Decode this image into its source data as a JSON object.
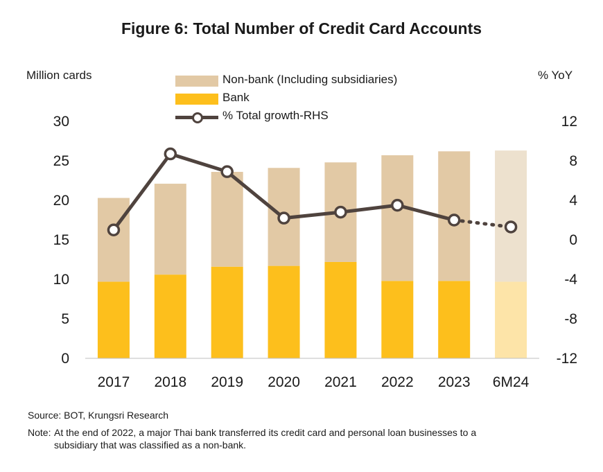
{
  "title": "Figure  6: Total Number of Credit Card Accounts",
  "left_axis_title": "Million cards",
  "right_axis_title": "% YoY",
  "source": "Source: BOT, Krungsri Research",
  "note": {
    "label": "Note:",
    "text": "At the end of 2022, a major Thai bank transferred its credit card and personal loan businesses to a subsidiary that was classified as a non-bank."
  },
  "colors": {
    "nonbank": "#E2C9A5",
    "bank": "#FDBF1C",
    "nonbank_faded": "#EDE1CE",
    "bank_faded": "#FDE4A8",
    "line": "#4F433E"
  },
  "chart_data": {
    "type": "bar",
    "stacked": true,
    "categories": [
      "2017",
      "2018",
      "2019",
      "2020",
      "2021",
      "2022",
      "2023",
      "6M24"
    ],
    "series": [
      {
        "name": "Bank",
        "axis": "left",
        "values": [
          9.7,
          10.6,
          11.6,
          11.7,
          12.2,
          9.8,
          9.8,
          9.7
        ]
      },
      {
        "name": "Non-bank (Including subsidiaries)",
        "axis": "left",
        "values": [
          10.6,
          11.5,
          12.0,
          12.4,
          12.6,
          15.9,
          16.4,
          16.6
        ]
      },
      {
        "name": "% Total growth-RHS",
        "type": "line",
        "axis": "right",
        "values": [
          1.0,
          8.7,
          6.9,
          2.2,
          2.8,
          3.5,
          2.0,
          1.3
        ],
        "dotted_last_segment": true
      }
    ],
    "legend_order": [
      "Non-bank (Including subsidiaries)",
      "Bank",
      "% Total growth-RHS"
    ],
    "highlighted_category": "6M24",
    "ylim_left": [
      0,
      30
    ],
    "ylim_right": [
      -12,
      12
    ],
    "yticks_left": [
      "0",
      "5",
      "10",
      "15",
      "20",
      "25",
      "30"
    ],
    "yticks_right": [
      "-12",
      "-8",
      "-4",
      "0",
      "4",
      "8",
      "12"
    ],
    "ylabel": "Million cards",
    "ylabel_right": "% YoY",
    "xlabel": "",
    "grid": false,
    "legend_position": "top-center"
  }
}
